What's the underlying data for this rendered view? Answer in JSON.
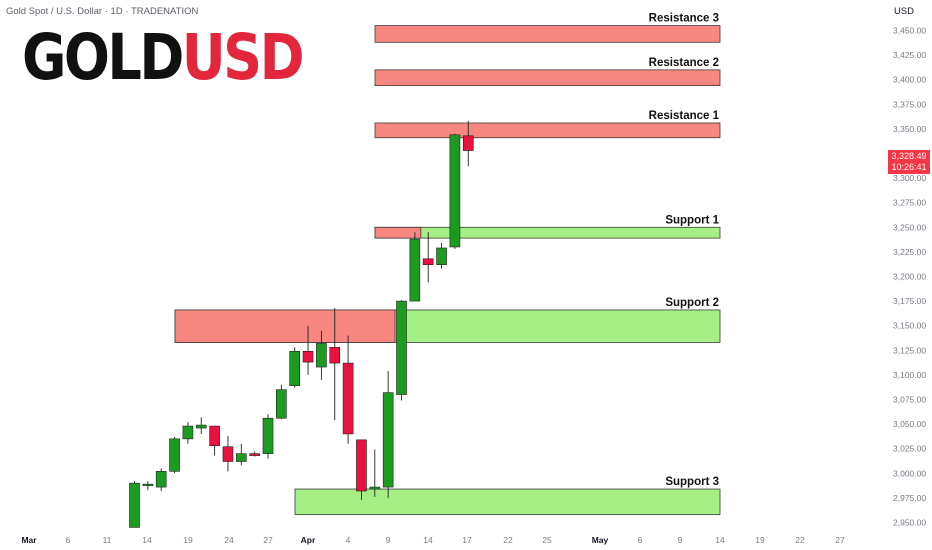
{
  "header": {
    "symbol": "Gold Spot / U.S. Dollar · 1D · TRADENATION",
    "brand_part1": "GOLD",
    "brand_part2": "USD",
    "currency": "USD"
  },
  "price_tag": {
    "price": "3,328.49",
    "timer": "10:26:41"
  },
  "colors": {
    "up": "#1c9b21",
    "down": "#e8113f",
    "resistance": "#f7877f",
    "support": "#a6ef84",
    "brand_red": "#e3263b"
  },
  "chart_data": {
    "type": "candlestick",
    "ylim": [
      2940,
      3475
    ],
    "y_ticks": [
      "2,950.00",
      "2,975.00",
      "3,000.00",
      "3,025.00",
      "3,050.00",
      "3,075.00",
      "3,100.00",
      "3,125.00",
      "3,150.00",
      "3,175.00",
      "3,200.00",
      "3,225.00",
      "3,250.00",
      "3,275.00",
      "3,300.00",
      "3,325.00",
      "3,350.00",
      "3,375.00",
      "3,400.00",
      "3,425.00",
      "3,450.00"
    ],
    "x_ticks": [
      "Mar",
      "6",
      "11",
      "14",
      "19",
      "24",
      "27",
      "Apr",
      "4",
      "9",
      "14",
      "17",
      "22",
      "25",
      "May",
      "6",
      "9",
      "14",
      "19",
      "22",
      "27"
    ],
    "candles": [
      {
        "o": 2945,
        "h": 2992,
        "l": 2945,
        "c": 2990
      },
      {
        "o": 2988,
        "h": 2992,
        "l": 2983,
        "c": 2989
      },
      {
        "o": 2986,
        "h": 3005,
        "l": 2982,
        "c": 3002
      },
      {
        "o": 3002,
        "h": 3037,
        "l": 3000,
        "c": 3035
      },
      {
        "o": 3035,
        "h": 3052,
        "l": 3030,
        "c": 3048
      },
      {
        "o": 3046,
        "h": 3057,
        "l": 3040,
        "c": 3049
      },
      {
        "o": 3048,
        "h": 3048,
        "l": 3018,
        "c": 3028
      },
      {
        "o": 3027,
        "h": 3038,
        "l": 3002,
        "c": 3012
      },
      {
        "o": 3012,
        "h": 3030,
        "l": 3008,
        "c": 3020
      },
      {
        "o": 3020,
        "h": 3022,
        "l": 3017,
        "c": 3018
      },
      {
        "o": 3020,
        "h": 3060,
        "l": 3015,
        "c": 3056
      },
      {
        "o": 3056,
        "h": 3090,
        "l": 3055,
        "c": 3085
      },
      {
        "o": 3089,
        "h": 3128,
        "l": 3087,
        "c": 3124
      },
      {
        "o": 3124,
        "h": 3150,
        "l": 3100,
        "c": 3113
      },
      {
        "o": 3108,
        "h": 3145,
        "l": 3095,
        "c": 3132
      },
      {
        "o": 3128,
        "h": 3168,
        "l": 3054,
        "c": 3112
      },
      {
        "o": 3112,
        "h": 3140,
        "l": 3030,
        "c": 3040
      },
      {
        "o": 3034,
        "h": 3034,
        "l": 2973,
        "c": 2982
      },
      {
        "o": 2984,
        "h": 3024,
        "l": 2976,
        "c": 2986
      },
      {
        "o": 2986,
        "h": 3104,
        "l": 2975,
        "c": 3082
      },
      {
        "o": 3080,
        "h": 3176,
        "l": 3074,
        "c": 3175
      },
      {
        "o": 3175,
        "h": 3245,
        "l": 3175,
        "c": 3238
      },
      {
        "o": 3218,
        "h": 3245,
        "l": 3194,
        "c": 3212
      },
      {
        "o": 3212,
        "h": 3234,
        "l": 3208,
        "c": 3229
      },
      {
        "o": 3230,
        "h": 3345,
        "l": 3228,
        "c": 3344
      },
      {
        "o": 3343,
        "h": 3358,
        "l": 3312,
        "c": 3328
      }
    ],
    "zones": [
      {
        "label": "Resistance 3",
        "kind": "resistance",
        "lo": 3438,
        "hi": 3455,
        "from": 9,
        "to": 39
      },
      {
        "label": "Resistance 2",
        "kind": "resistance",
        "lo": 3394,
        "hi": 3410,
        "from": 9,
        "to": 39
      },
      {
        "label": "Resistance 1",
        "kind": "resistance",
        "lo": 3341,
        "hi": 3356,
        "from": 9,
        "to": 39
      },
      {
        "label": "Support 1",
        "kind": "support",
        "lo": 3239,
        "hi": 3250,
        "from": 9,
        "to": 39
      },
      {
        "label": "Support 2",
        "kind": "support",
        "lo": 3133,
        "hi": 3166,
        "from": -10,
        "to": 39
      },
      {
        "label": "Support 3",
        "kind": "support",
        "lo": 2958,
        "hi": 2984,
        "from": -4.5,
        "to": 39
      }
    ],
    "resistance_overlap": {
      "lo": 3133,
      "hi": 3166,
      "from": -10,
      "to": 5.5
    },
    "support1_overlap": {
      "lo": 3239,
      "hi": 3250,
      "from": 9,
      "to": 21
    }
  }
}
